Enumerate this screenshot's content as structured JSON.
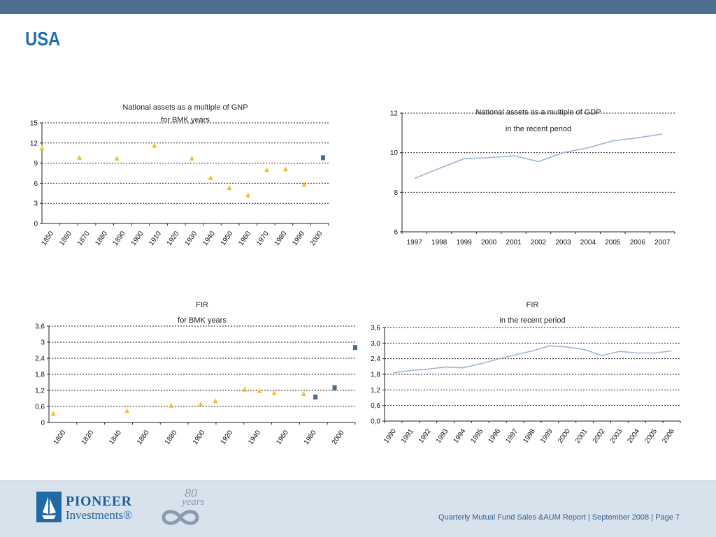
{
  "page": {
    "title": "USA",
    "footer_text": "Quarterly Mutual Fund Sales &AUM Report | September 2008 | Page 7",
    "logo_line1": "PIONEER",
    "logo_line2": "Investments®",
    "anniversary_number": "80",
    "anniversary_word": "years"
  },
  "colors": {
    "header_bar": "#4e6e8e",
    "title": "#1f6fb2",
    "marker_triangle": "#f2c12e",
    "marker_square": "#4d6a86",
    "line": "#9fb5d2",
    "footer_bg": "#d8e2ec"
  },
  "chart_data": [
    {
      "type": "scatter",
      "title_lines": [
        "National assets as a multiple of GNP",
        "for BMK years"
      ],
      "x_ticks": [
        "1850",
        "1860",
        "1870",
        "1880",
        "1890",
        "1900",
        "1910",
        "1920",
        "1930",
        "1940",
        "1950",
        "1960",
        "1970",
        "1980",
        "1990",
        "2000"
      ],
      "y_ticks": [
        "0",
        "3",
        "6",
        "9",
        "12",
        "15"
      ],
      "xlim": [
        1850,
        2003
      ],
      "ylim": [
        0,
        15
      ],
      "grid": "dotted horizontal",
      "series": [
        {
          "marker": "triangle",
          "x": [
            1850,
            1870,
            1890,
            1910,
            1930,
            1940,
            1950,
            1960,
            1970,
            1980,
            1990
          ],
          "y": [
            11.2,
            9.8,
            9.7,
            11.6,
            9.7,
            6.8,
            5.3,
            4.2,
            8.0,
            8.1,
            5.8
          ]
        },
        {
          "marker": "square",
          "x": [
            2000
          ],
          "y": [
            9.8
          ]
        }
      ]
    },
    {
      "type": "line",
      "title_lines": [
        "National assets as a multiple of GDP",
        "in the recent period"
      ],
      "categories": [
        "1997",
        "1998",
        "1999",
        "2000",
        "2001",
        "2002",
        "2003",
        "2004",
        "2005",
        "2006",
        "2007"
      ],
      "y_ticks": [
        "6",
        "8",
        "10",
        "12"
      ],
      "ylim": [
        6,
        12
      ],
      "grid": "dotted horizontal",
      "series": [
        {
          "values": [
            8.7,
            9.2,
            9.7,
            9.75,
            9.85,
            9.55,
            10.0,
            10.25,
            10.6,
            10.75,
            10.95
          ]
        }
      ]
    },
    {
      "type": "scatter",
      "title_lines": [
        "FIR",
        "for BMK years"
      ],
      "x_ticks": [
        "1800",
        "1820",
        "1840",
        "1860",
        "1880",
        "1900",
        "1920",
        "1940",
        "1960",
        "1980",
        "2000"
      ],
      "y_ticks": [
        "0",
        "0,6",
        "1,2",
        "1,8",
        "2,4",
        "3",
        "3,6"
      ],
      "xlim": [
        1797,
        2005
      ],
      "ylim": [
        0,
        3.6
      ],
      "grid": "dotted horizontal",
      "series": [
        {
          "marker": "triangle",
          "x": [
            1800,
            1850,
            1880,
            1900,
            1910,
            1930,
            1940,
            1950,
            1970
          ],
          "y": [
            0.33,
            0.43,
            0.63,
            0.68,
            0.8,
            1.23,
            1.18,
            1.1,
            1.07
          ]
        },
        {
          "marker": "square",
          "x": [
            1978,
            1991,
            2005
          ],
          "y": [
            0.95,
            1.3,
            2.8
          ]
        }
      ]
    },
    {
      "type": "line",
      "title_lines": [
        "FIR",
        "in the recent period"
      ],
      "categories": [
        "1990",
        "1991",
        "1992",
        "1993",
        "1994",
        "1995",
        "1996",
        "1997",
        "1998",
        "1999",
        "2000",
        "2001",
        "2002",
        "2003",
        "2004",
        "2005",
        "2006"
      ],
      "y_ticks": [
        "0,0",
        "0,6",
        "1,2",
        "1,8",
        "2,4",
        "3,0",
        "3,6"
      ],
      "ylim": [
        0,
        3.6
      ],
      "grid": "dotted horizontal",
      "series": [
        {
          "values": [
            1.85,
            1.95,
            2.0,
            2.08,
            2.05,
            2.2,
            2.38,
            2.55,
            2.7,
            2.9,
            2.85,
            2.75,
            2.52,
            2.68,
            2.62,
            2.62,
            2.7
          ]
        }
      ]
    }
  ]
}
